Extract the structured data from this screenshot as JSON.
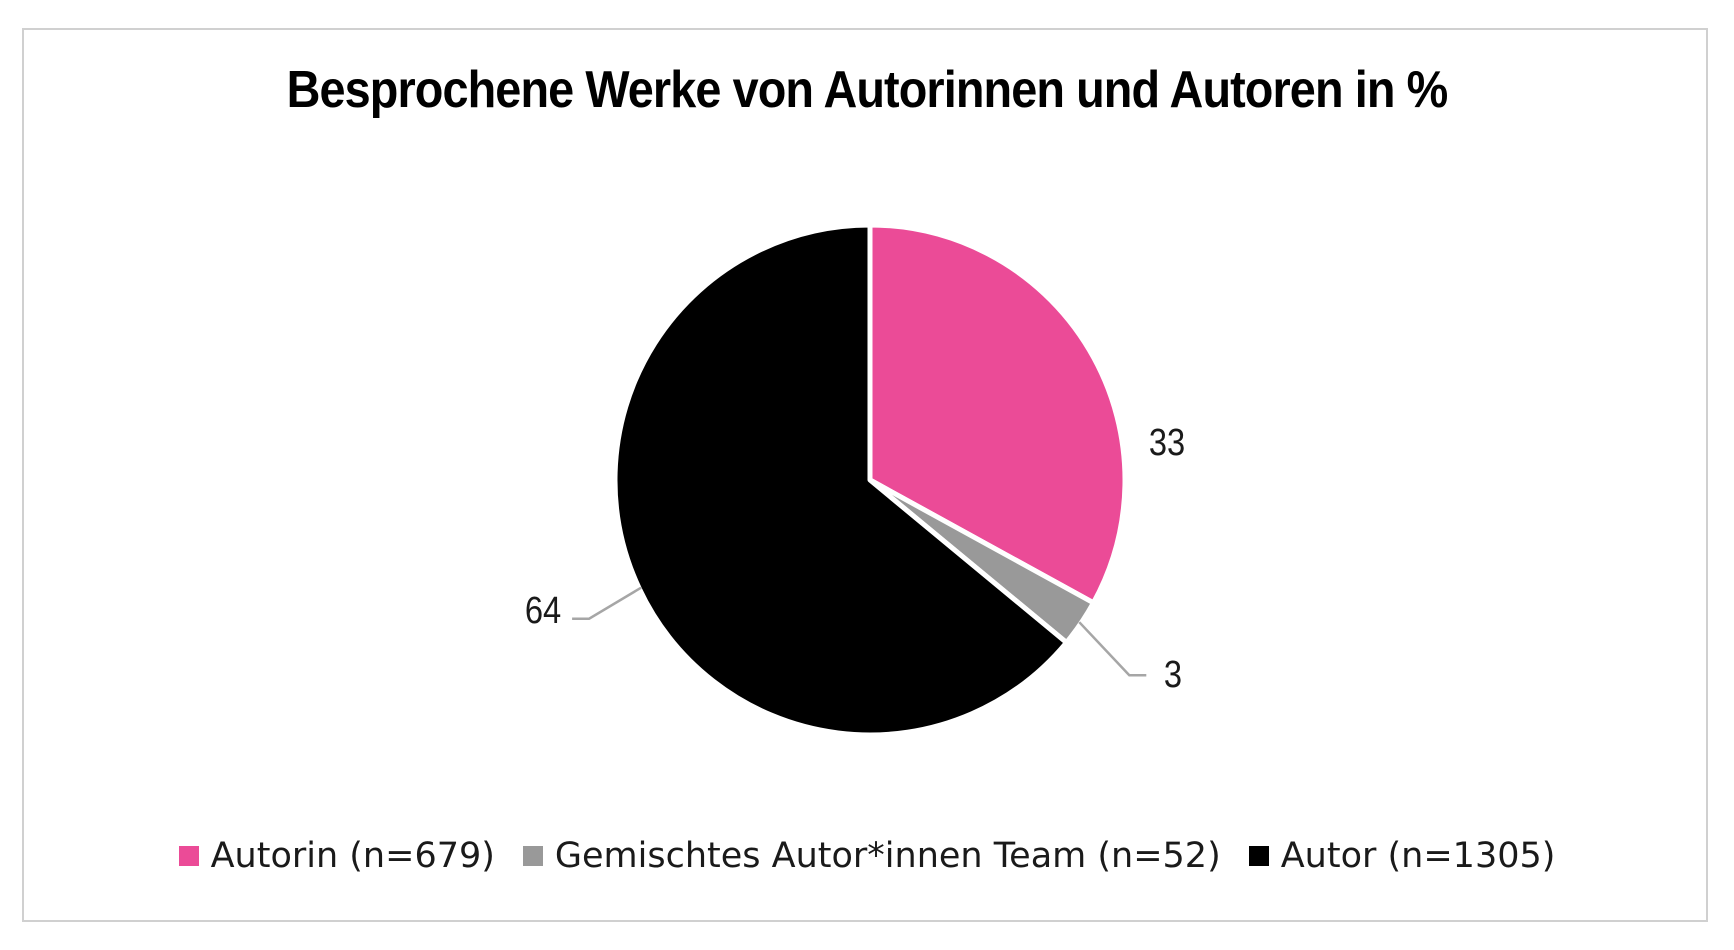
{
  "chart_data": {
    "type": "pie",
    "title": "Besprochene Werke von Autorinnen und Autoren in %",
    "categories": [
      "Autorin (n=679)",
      "Gemischtes Autor*innen Team (n=52)",
      "Autor (n=1305)"
    ],
    "values": [
      33,
      3,
      64
    ],
    "data_labels": [
      "33",
      "3",
      "64"
    ],
    "colors": [
      "#eb4b97",
      "#999999",
      "#000000"
    ],
    "legend_position": "bottom",
    "start_angle": "12 o'clock",
    "direction": "clockwise"
  }
}
